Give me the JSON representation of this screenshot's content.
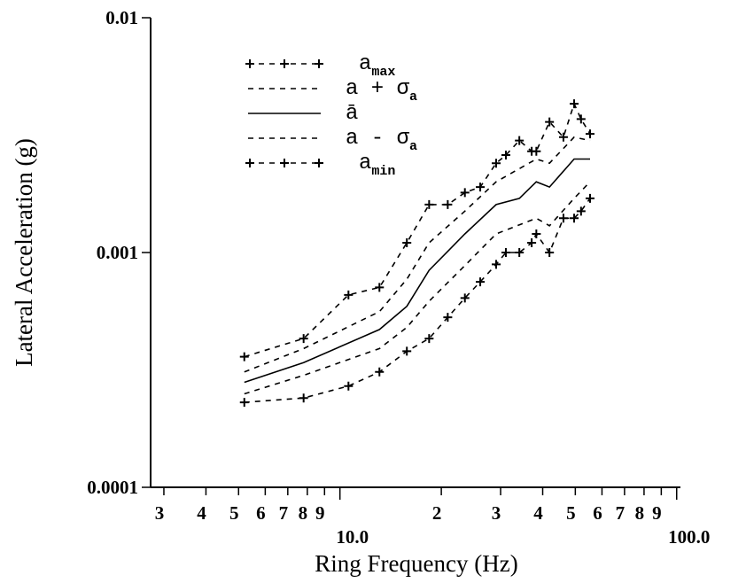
{
  "chart_data": {
    "type": "line",
    "xlabel": "Ring Frequency (Hz)",
    "ylabel": "Lateral Acceleration (g)",
    "xscale": "log",
    "yscale": "log",
    "xlim": [
      2.74,
      102.6
    ],
    "ylim": [
      0.0001,
      0.01
    ],
    "xticks": [
      3,
      4,
      5,
      6,
      7,
      8,
      9,
      {
        "value": 10,
        "label": "10.0"
      },
      {
        "value": 20,
        "label": "2"
      },
      {
        "value": 30,
        "label": "3"
      },
      {
        "value": 40,
        "label": "4"
      },
      {
        "value": 50,
        "label": "5"
      },
      {
        "value": 60,
        "label": "6"
      },
      {
        "value": 70,
        "label": "7"
      },
      {
        "value": 80,
        "label": "8"
      },
      {
        "value": 90,
        "label": "9"
      },
      {
        "value": 100,
        "label": "100.0"
      }
    ],
    "yticks": [
      0.0001,
      0.001,
      0.01
    ],
    "series": [
      {
        "name": "a",
        "subscript": "max",
        "color": "#000",
        "dash": true,
        "marker": "+",
        "x": [
          5.2,
          7.8,
          10.6,
          13.1,
          15.8,
          18.4,
          20.9,
          23.5,
          26.1,
          29.1,
          31.1,
          34.1,
          37.1,
          38.3,
          41.9,
          46.1,
          49.6,
          52,
          55.3
        ],
        "values": [
          0.00036,
          0.00043,
          0.00066,
          0.00071,
          0.0011,
          0.0016,
          0.0016,
          0.0018,
          0.0019,
          0.0024,
          0.0026,
          0.003,
          0.0027,
          0.0027,
          0.0036,
          0.0031,
          0.0043,
          0.0037,
          0.0032
        ]
      },
      {
        "name": "a + σ",
        "subscript": "a",
        "color": "#000",
        "dash": true,
        "x": [
          5.2,
          7.8,
          13.1,
          15.8,
          18.4,
          23.5,
          29.1,
          38.3,
          41.9,
          49.6,
          55.3
        ],
        "values": [
          0.00031,
          0.00039,
          0.00056,
          0.00077,
          0.0011,
          0.0015,
          0.002,
          0.0025,
          0.0024,
          0.0031,
          0.003
        ]
      },
      {
        "name": "ā",
        "color": "#000",
        "dash": false,
        "x": [
          5.2,
          7.8,
          13.1,
          15.8,
          18.4,
          23.5,
          29.1,
          34.1,
          38.3,
          41.9,
          49.6,
          55.3
        ],
        "values": [
          0.00028,
          0.00034,
          0.00047,
          0.00059,
          0.00084,
          0.0012,
          0.0016,
          0.0017,
          0.002,
          0.0019,
          0.0025,
          0.0025
        ]
      },
      {
        "name": "a - σ",
        "subscript": "a",
        "color": "#000",
        "dash": true,
        "x": [
          5.2,
          7.8,
          13.1,
          15.8,
          18.4,
          23.5,
          29.1,
          38.3,
          41.9,
          49.6,
          55.3
        ],
        "values": [
          0.00025,
          0.0003,
          0.00039,
          0.00048,
          0.00062,
          0.00088,
          0.0012,
          0.0014,
          0.0013,
          0.0017,
          0.002
        ]
      },
      {
        "name": "a",
        "subscript": "min",
        "color": "#000",
        "dash": true,
        "marker": "+",
        "x": [
          5.2,
          7.8,
          10.6,
          13.1,
          15.8,
          18.4,
          20.9,
          23.5,
          26.1,
          29.1,
          31.1,
          34.1,
          37.1,
          38.3,
          41.9,
          46.1,
          49.6,
          52,
          55.3
        ],
        "values": [
          0.00023,
          0.00024,
          0.00027,
          0.00031,
          0.00038,
          0.00043,
          0.00053,
          0.00064,
          0.00075,
          0.00089,
          0.001,
          0.001,
          0.0011,
          0.0012,
          0.001,
          0.0014,
          0.0014,
          0.0015,
          0.0017
        ]
      }
    ]
  }
}
